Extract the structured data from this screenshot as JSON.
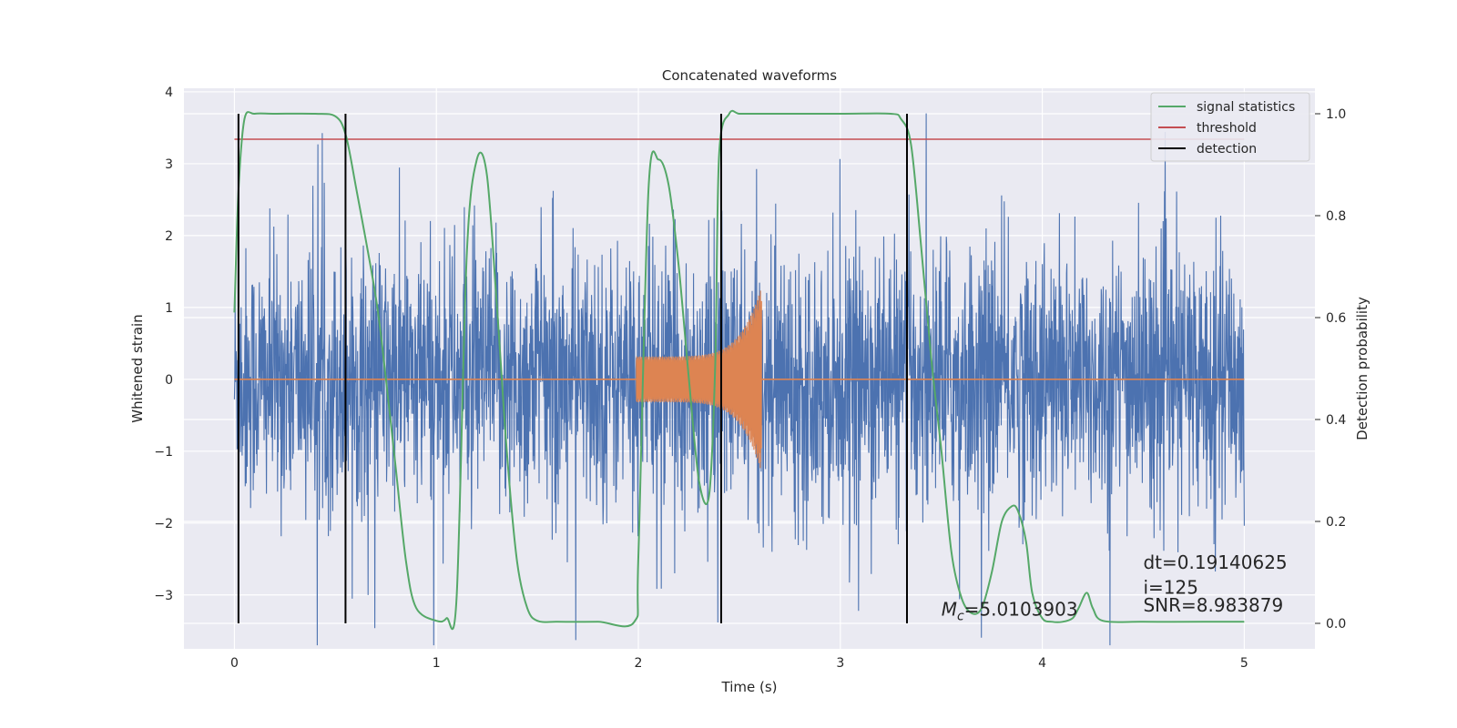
{
  "chart_data": {
    "type": "line",
    "title": "Concatenated waveforms",
    "xlabel": "Time (s)",
    "ylabel": "Whitened strain",
    "y2label": "Detection probability",
    "xlim": [
      -0.25,
      5.35
    ],
    "ylim": [
      -3.75,
      4.05
    ],
    "y2lim": [
      -0.05,
      1.05
    ],
    "xticks": [
      0,
      1,
      2,
      3,
      4,
      5
    ],
    "xtick_labels": [
      "0",
      "1",
      "2",
      "3",
      "4",
      "5"
    ],
    "yticks": [
      -3,
      -2,
      -1,
      0,
      1,
      2,
      3,
      4
    ],
    "ytick_labels": [
      "−3",
      "−2",
      "−1",
      "0",
      "1",
      "2",
      "3",
      "4"
    ],
    "y2ticks": [
      0.0,
      0.2,
      0.4,
      0.6,
      0.8,
      1.0
    ],
    "y2tick_labels": [
      "0.0",
      "0.2",
      "0.4",
      "0.6",
      "0.8",
      "1.0"
    ],
    "grid": true,
    "legend_position": "top-right",
    "colors": {
      "strain": "#4c72b0",
      "template": "#dd8452",
      "signal_statistics": "#55a868",
      "threshold": "#c44e52",
      "detection": "#000000",
      "background": "#eaeaf2",
      "grid": "#ffffff"
    },
    "series": [
      {
        "name": "signal statistics",
        "axis": "right",
        "x": [
          0.0,
          0.02,
          0.05,
          0.1,
          0.2,
          0.4,
          0.5,
          0.55,
          0.6,
          0.7,
          0.75,
          0.8,
          0.85,
          0.9,
          1.0,
          1.05,
          1.1,
          1.15,
          1.2,
          1.25,
          1.3,
          1.35,
          1.4,
          1.45,
          1.5,
          1.6,
          1.8,
          1.98,
          2.0,
          2.05,
          2.1,
          2.15,
          2.2,
          2.25,
          2.3,
          2.35,
          2.38,
          2.4,
          2.45,
          2.5,
          2.6,
          3.0,
          3.25,
          3.3,
          3.35,
          3.4,
          3.45,
          3.5,
          3.55,
          3.6,
          3.65,
          3.7,
          3.75,
          3.8,
          3.85,
          3.88,
          3.92,
          3.95,
          4.0,
          4.05,
          4.1,
          4.15,
          4.18,
          4.22,
          4.25,
          4.3,
          4.5,
          4.8,
          5.0
        ],
        "values": [
          0.61,
          0.85,
          0.99,
          1.0,
          1.0,
          1.0,
          0.995,
          0.96,
          0.86,
          0.64,
          0.48,
          0.3,
          0.12,
          0.03,
          0.005,
          0.01,
          0.05,
          0.72,
          0.91,
          0.88,
          0.62,
          0.33,
          0.12,
          0.03,
          0.005,
          0.003,
          0.003,
          0.003,
          0.13,
          0.85,
          0.91,
          0.86,
          0.7,
          0.48,
          0.28,
          0.25,
          0.5,
          0.92,
          1.0,
          1.0,
          1.0,
          1.0,
          1.0,
          0.99,
          0.94,
          0.74,
          0.52,
          0.34,
          0.14,
          0.05,
          0.02,
          0.03,
          0.1,
          0.2,
          0.23,
          0.22,
          0.16,
          0.06,
          0.01,
          0.003,
          0.003,
          0.01,
          0.03,
          0.06,
          0.03,
          0.005,
          0.003,
          0.003,
          0.003
        ]
      },
      {
        "name": "threshold",
        "axis": "right",
        "x": [
          0.0,
          5.0
        ],
        "values": [
          0.95,
          0.95
        ]
      },
      {
        "name": "detection",
        "axis": "right",
        "type": "vlines",
        "x": [
          0.02,
          0.55,
          2.41,
          3.33
        ],
        "ymin": 0.0,
        "ymax": 1.0
      },
      {
        "name": "",
        "axis": "left",
        "type": "noise",
        "x_range": [
          0.0,
          5.0
        ],
        "typical_amplitude": 1.5,
        "max_amplitude": 3.7
      },
      {
        "name": "",
        "axis": "left",
        "type": "chirp",
        "x_range": [
          1.99,
          2.61
        ],
        "envelope_start": 0.32,
        "envelope_end": 1.3,
        "baseline": 0.0
      }
    ],
    "annotations": [
      {
        "text_main": "M",
        "text_sub": "c",
        "text_rest": "=5.0103903",
        "x": 3.5,
        "y": 0.015,
        "axis": "right"
      },
      {
        "text": "dt=0.19140625",
        "x": 4.5,
        "y": 0.107,
        "axis": "right"
      },
      {
        "text": " i=125",
        "x": 4.5,
        "y": 0.058,
        "axis": "right"
      },
      {
        "text": "SNR=8.983879",
        "x": 4.5,
        "y": 0.023,
        "axis": "right"
      }
    ]
  }
}
